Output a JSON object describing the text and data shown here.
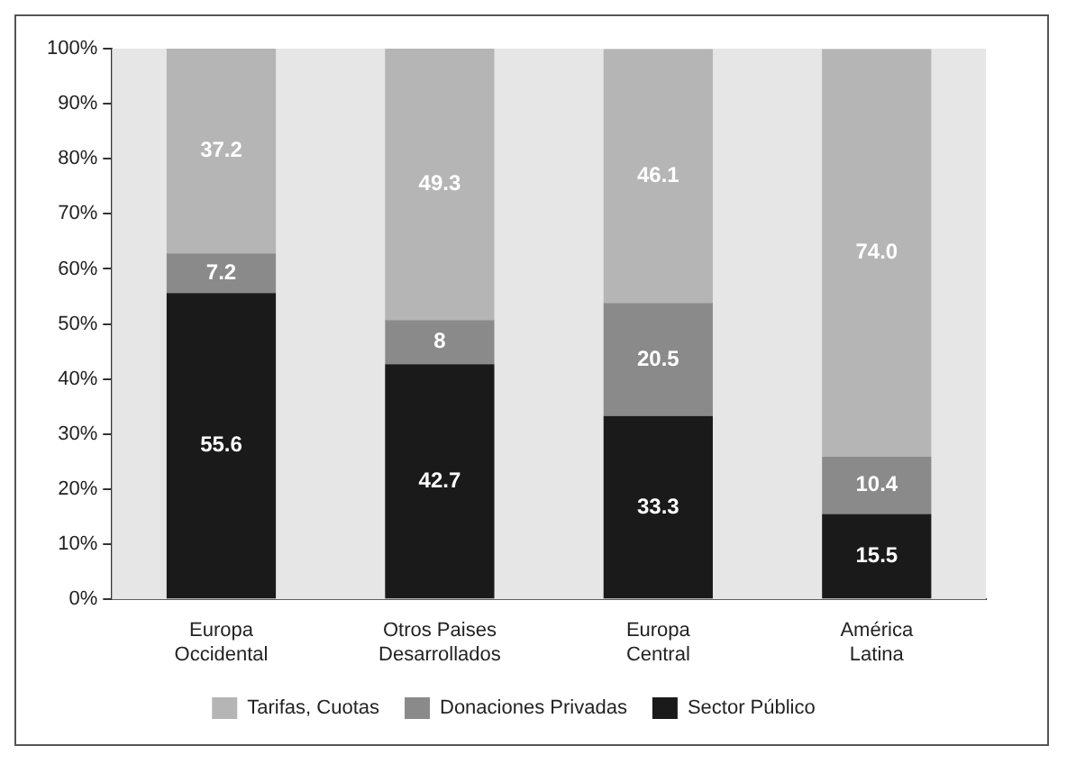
{
  "chart_data": {
    "type": "bar",
    "stacked": true,
    "categories": [
      "Europa Occidental",
      "Otros Paises Desarrollados",
      "Europa Central",
      "América Latina"
    ],
    "series": [
      {
        "name": "Sector Público",
        "color": "#1a1a1a",
        "values": [
          55.6,
          42.7,
          33.3,
          15.5
        ],
        "value_labels": [
          "55.6",
          "42.7",
          "33.3",
          "15.5"
        ]
      },
      {
        "name": "Donaciones Privadas",
        "color": "#8a8a8a",
        "values": [
          7.2,
          8,
          20.5,
          10.4
        ],
        "value_labels": [
          "7.2",
          "8",
          "20.5",
          "10.4"
        ]
      },
      {
        "name": "Tarifas, Cuotas",
        "color": "#b5b5b5",
        "values": [
          37.2,
          49.3,
          46.1,
          74.0
        ],
        "value_labels": [
          "37.2",
          "49.3",
          "46.1",
          "74.0"
        ]
      }
    ],
    "ylim": [
      0,
      100
    ],
    "yticks": [
      {
        "value": 0,
        "label": "0%"
      },
      {
        "value": 10,
        "label": "10%"
      },
      {
        "value": 20,
        "label": "20%"
      },
      {
        "value": 30,
        "label": "30%"
      },
      {
        "value": 40,
        "label": "40%"
      },
      {
        "value": 50,
        "label": "50%"
      },
      {
        "value": 60,
        "label": "60%"
      },
      {
        "value": 70,
        "label": "70%"
      },
      {
        "value": 80,
        "label": "80%"
      },
      {
        "value": 90,
        "label": "90%"
      },
      {
        "value": 100,
        "label": "100%"
      }
    ],
    "grid": false,
    "legend": "bottom"
  }
}
